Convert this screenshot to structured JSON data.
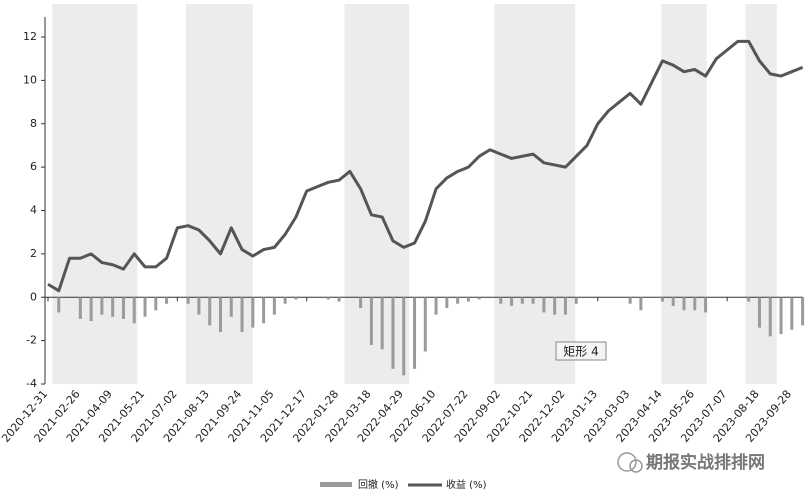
{
  "chart_data": {
    "type": "combo",
    "ylim": [
      -4,
      12
    ],
    "yticks": [
      -4,
      -2,
      0,
      2,
      4,
      6,
      8,
      10,
      12
    ],
    "categories": [
      "2020-12-31",
      null,
      null,
      "2021-02-26",
      null,
      null,
      "2021-04-09",
      null,
      null,
      "2021-05-21",
      null,
      null,
      "2021-07-02",
      null,
      null,
      "2021-08-13",
      null,
      null,
      "2021-09-24",
      null,
      null,
      "2021-11-05",
      null,
      null,
      "2021-12-17",
      null,
      null,
      "2022-01-28",
      null,
      null,
      "2022-03-18",
      null,
      null,
      "2022-04-29",
      null,
      null,
      "2022-06-10",
      null,
      null,
      "2022-07-22",
      null,
      null,
      "2022-09-02",
      null,
      null,
      "2022-10-21",
      null,
      null,
      "2022-12-02",
      null,
      null,
      "2023-01-13",
      null,
      null,
      "2023-03-03",
      null,
      null,
      "2023-04-14",
      null,
      null,
      "2023-05-26",
      null,
      null,
      "2023-07-07",
      null,
      null,
      "2023-08-18",
      null,
      null,
      "2023-09-28",
      null
    ],
    "shaded_ranges": [
      [
        0.4,
        8.3
      ],
      [
        12.8,
        19
      ],
      [
        27.5,
        33.5
      ],
      [
        41.4,
        48.9
      ],
      [
        56.9,
        61.1
      ],
      [
        64.7,
        67.6
      ]
    ],
    "shade_color": "#ececec",
    "series": [
      {
        "name": "回撤 (%)",
        "type": "bar",
        "color": "#9a9a9a",
        "values": [
          0,
          -0.7,
          0,
          -1.0,
          -1.1,
          -0.8,
          -0.9,
          -1.0,
          -1.2,
          -0.9,
          -0.6,
          -0.3,
          0,
          -0.3,
          -0.8,
          -1.3,
          -1.6,
          -0.9,
          -1.6,
          -1.4,
          -1.2,
          -0.8,
          -0.3,
          -0.1,
          0,
          0,
          -0.1,
          -0.2,
          0,
          -0.5,
          -2.2,
          -2.4,
          -3.3,
          -3.6,
          -3.3,
          -2.5,
          -0.8,
          -0.5,
          -0.3,
          -0.2,
          -0.1,
          0,
          -0.3,
          -0.4,
          -0.3,
          -0.3,
          -0.7,
          -0.8,
          -0.8,
          -0.3,
          0,
          0,
          0,
          0,
          -0.3,
          -0.6,
          0,
          -0.2,
          -0.4,
          -0.6,
          -0.6,
          -0.7,
          0,
          0,
          0,
          -0.2,
          -1.4,
          -1.8,
          -1.7,
          -1.5,
          -1.3
        ]
      },
      {
        "name": "收益 (%)",
        "type": "line",
        "color": "#555555",
        "values": [
          0.6,
          0.3,
          1.8,
          1.8,
          2.0,
          1.6,
          1.5,
          1.3,
          2.0,
          1.4,
          1.4,
          1.8,
          3.2,
          3.3,
          3.1,
          2.6,
          2.0,
          3.2,
          2.2,
          1.9,
          2.2,
          2.3,
          2.9,
          3.7,
          4.9,
          5.1,
          5.3,
          5.4,
          5.8,
          5.0,
          3.8,
          3.7,
          2.6,
          2.3,
          2.5,
          3.5,
          5.0,
          5.5,
          5.8,
          6.0,
          6.5,
          6.8,
          6.6,
          6.4,
          6.5,
          6.6,
          6.2,
          6.1,
          6.0,
          6.5,
          7.0,
          8.0,
          8.6,
          9.0,
          9.4,
          8.9,
          9.9,
          10.9,
          10.7,
          10.4,
          10.5,
          10.2,
          11.0,
          11.4,
          11.8,
          11.8,
          10.9,
          10.3,
          10.2,
          10.4,
          10.6
        ]
      }
    ],
    "annotation": "矩形 4",
    "watermark": "期报实战排排网"
  }
}
